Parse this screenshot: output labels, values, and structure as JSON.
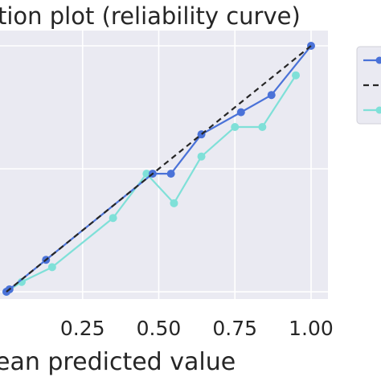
{
  "chart_data": {
    "type": "line",
    "title": "tion plot (reliability curve)",
    "xlabel": "ean predicted value",
    "ylabel": "",
    "xlim": [
      -0.04,
      1.05
    ],
    "ylim": [
      -0.08,
      1.05
    ],
    "grid": true,
    "legend_position": "right",
    "x_ticks": [
      0.25,
      0.5,
      0.75,
      1.0
    ],
    "x_tick_labels": [
      "0.25",
      "0.50",
      "0.75",
      "1.00"
    ],
    "y_ticks": [
      0.0,
      0.5,
      1.0
    ],
    "series": [
      {
        "color": "#4a72d8",
        "style": "solid",
        "marker": true,
        "x": [
          0.0,
          0.01,
          0.13,
          0.48,
          0.54,
          0.64,
          0.77,
          0.87,
          1.0
        ],
        "y": [
          0.0,
          0.01,
          0.13,
          0.48,
          0.48,
          0.64,
          0.73,
          0.8,
          1.0
        ]
      },
      {
        "color": "#262626",
        "style": "dashed",
        "marker": false,
        "x": [
          0.0,
          1.0
        ],
        "y": [
          0.0,
          1.0
        ]
      },
      {
        "color": "#7fe0d8",
        "style": "solid",
        "marker": true,
        "x": [
          0.0,
          0.05,
          0.15,
          0.35,
          0.46,
          0.55,
          0.64,
          0.75,
          0.84,
          0.95
        ],
        "y": [
          0.0,
          0.04,
          0.1,
          0.3,
          0.48,
          0.36,
          0.55,
          0.67,
          0.67,
          0.88
        ]
      }
    ]
  }
}
